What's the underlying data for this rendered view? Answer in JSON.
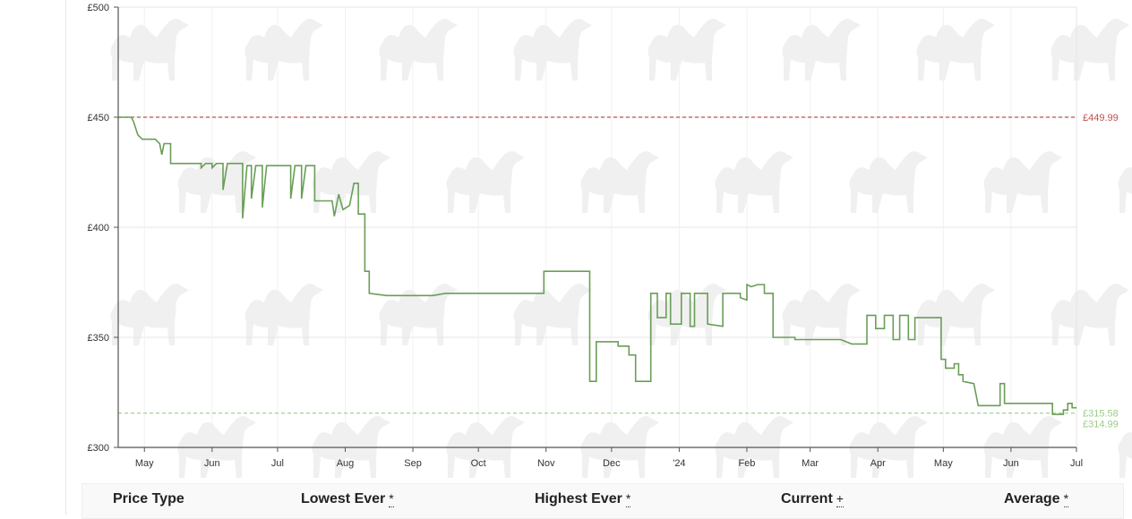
{
  "colors": {
    "price_line": "#6a9e58",
    "highest_ref": "#c0504d",
    "lowest_ref": "#9ccc89",
    "grid": "#e6e6e6",
    "axis": "#555555",
    "watermark": "#f0f0f0"
  },
  "watermark_icon": "camel-icon",
  "chart_data": {
    "type": "line",
    "title": "",
    "xlabel": "",
    "ylabel": "",
    "ylim": [
      300,
      500
    ],
    "xlim": [
      "2023-04-19",
      "2024-07-01"
    ],
    "y_ticks": [
      {
        "value": 300,
        "label": "£300"
      },
      {
        "value": 350,
        "label": "£350"
      },
      {
        "value": 400,
        "label": "£400"
      },
      {
        "value": 450,
        "label": "£450"
      },
      {
        "value": 500,
        "label": "£500"
      }
    ],
    "x_ticks": [
      {
        "date": "2023-05-01",
        "label": "May"
      },
      {
        "date": "2023-06-01",
        "label": "Jun"
      },
      {
        "date": "2023-07-01",
        "label": "Jul"
      },
      {
        "date": "2023-08-01",
        "label": "Aug"
      },
      {
        "date": "2023-09-01",
        "label": "Sep"
      },
      {
        "date": "2023-10-01",
        "label": "Oct"
      },
      {
        "date": "2023-11-01",
        "label": "Nov"
      },
      {
        "date": "2023-12-01",
        "label": "Dec"
      },
      {
        "date": "2024-01-01",
        "label": "'24"
      },
      {
        "date": "2024-02-01",
        "label": "Feb"
      },
      {
        "date": "2024-03-01",
        "label": "Mar"
      },
      {
        "date": "2024-04-01",
        "label": "Apr"
      },
      {
        "date": "2024-05-01",
        "label": "May"
      },
      {
        "date": "2024-06-01",
        "label": "Jun"
      },
      {
        "date": "2024-07-01",
        "label": "Jul"
      }
    ],
    "reference_lines": [
      {
        "value": 449.99,
        "label": "£449.99",
        "kind": "highest"
      },
      {
        "value": 315.58,
        "label": "£315.58",
        "kind": "average"
      },
      {
        "value": 314.99,
        "label": "£314.99",
        "kind": "lowest"
      }
    ],
    "series": [
      {
        "points": [
          [
            "2023-04-19",
            450
          ],
          [
            "2023-04-25",
            450
          ],
          [
            "2023-04-26",
            448
          ],
          [
            "2023-04-27",
            445
          ],
          [
            "2023-04-28",
            442
          ],
          [
            "2023-04-30",
            440
          ],
          [
            "2023-05-06",
            440
          ],
          [
            "2023-05-08",
            438
          ],
          [
            "2023-05-09",
            433
          ],
          [
            "2023-05-10",
            438
          ],
          [
            "2023-05-13",
            438
          ],
          [
            "2023-05-13",
            429
          ],
          [
            "2023-05-27",
            429
          ],
          [
            "2023-05-27",
            427
          ],
          [
            "2023-05-29",
            429
          ],
          [
            "2023-06-01",
            429
          ],
          [
            "2023-06-01",
            427
          ],
          [
            "2023-06-03",
            429
          ],
          [
            "2023-06-06",
            429
          ],
          [
            "2023-06-06",
            417
          ],
          [
            "2023-06-08",
            429
          ],
          [
            "2023-06-15",
            429
          ],
          [
            "2023-06-15",
            404
          ],
          [
            "2023-06-17",
            428
          ],
          [
            "2023-06-19",
            428
          ],
          [
            "2023-06-19",
            413
          ],
          [
            "2023-06-21",
            428
          ],
          [
            "2023-06-24",
            428
          ],
          [
            "2023-06-24",
            409
          ],
          [
            "2023-06-26",
            428
          ],
          [
            "2023-07-07",
            428
          ],
          [
            "2023-07-07",
            413
          ],
          [
            "2023-07-09",
            428
          ],
          [
            "2023-07-12",
            428
          ],
          [
            "2023-07-12",
            413
          ],
          [
            "2023-07-14",
            428
          ],
          [
            "2023-07-18",
            428
          ],
          [
            "2023-07-18",
            412
          ],
          [
            "2023-07-26",
            412
          ],
          [
            "2023-07-27",
            405
          ],
          [
            "2023-07-29",
            415
          ],
          [
            "2023-07-31",
            408
          ],
          [
            "2023-08-03",
            410
          ],
          [
            "2023-08-05",
            420
          ],
          [
            "2023-08-07",
            420
          ],
          [
            "2023-08-07",
            406
          ],
          [
            "2023-08-10",
            406
          ],
          [
            "2023-08-10",
            380
          ],
          [
            "2023-08-12",
            380
          ],
          [
            "2023-08-12",
            370
          ],
          [
            "2023-08-20",
            369
          ],
          [
            "2023-09-10",
            369
          ],
          [
            "2023-09-16",
            370
          ],
          [
            "2023-10-31",
            370
          ],
          [
            "2023-10-31",
            380
          ],
          [
            "2023-11-21",
            380
          ],
          [
            "2023-11-21",
            330
          ],
          [
            "2023-11-24",
            330
          ],
          [
            "2023-11-24",
            348
          ],
          [
            "2023-12-04",
            348
          ],
          [
            "2023-12-04",
            346
          ],
          [
            "2023-12-09",
            346
          ],
          [
            "2023-12-09",
            342
          ],
          [
            "2023-12-12",
            342
          ],
          [
            "2023-12-12",
            330
          ],
          [
            "2023-12-19",
            330
          ],
          [
            "2023-12-19",
            370
          ],
          [
            "2023-12-22",
            370
          ],
          [
            "2023-12-22",
            359
          ],
          [
            "2023-12-26",
            359
          ],
          [
            "2023-12-26",
            370
          ],
          [
            "2023-12-28",
            370
          ],
          [
            "2023-12-28",
            356
          ],
          [
            "2024-01-02",
            356
          ],
          [
            "2024-01-02",
            370
          ],
          [
            "2024-01-06",
            370
          ],
          [
            "2024-01-06",
            355
          ],
          [
            "2024-01-08",
            355
          ],
          [
            "2024-01-08",
            370
          ],
          [
            "2024-01-14",
            370
          ],
          [
            "2024-01-14",
            356
          ],
          [
            "2024-01-21",
            355
          ],
          [
            "2024-01-21",
            370
          ],
          [
            "2024-01-29",
            370
          ],
          [
            "2024-01-29",
            368
          ],
          [
            "2024-02-01",
            367
          ],
          [
            "2024-02-01",
            374
          ],
          [
            "2024-02-03",
            373
          ],
          [
            "2024-02-06",
            374
          ],
          [
            "2024-02-09",
            374
          ],
          [
            "2024-02-09",
            370
          ],
          [
            "2024-02-13",
            370
          ],
          [
            "2024-02-13",
            350
          ],
          [
            "2024-02-23",
            350
          ],
          [
            "2024-02-23",
            349
          ],
          [
            "2024-03-15",
            349
          ],
          [
            "2024-03-20",
            347
          ],
          [
            "2024-03-27",
            347
          ],
          [
            "2024-03-27",
            360
          ],
          [
            "2024-03-31",
            360
          ],
          [
            "2024-03-31",
            354
          ],
          [
            "2024-04-04",
            354
          ],
          [
            "2024-04-04",
            360
          ],
          [
            "2024-04-08",
            360
          ],
          [
            "2024-04-08",
            349
          ],
          [
            "2024-04-11",
            349
          ],
          [
            "2024-04-11",
            360
          ],
          [
            "2024-04-15",
            360
          ],
          [
            "2024-04-15",
            349
          ],
          [
            "2024-04-18",
            349
          ],
          [
            "2024-04-18",
            359
          ],
          [
            "2024-04-30",
            359
          ],
          [
            "2024-04-30",
            340
          ],
          [
            "2024-05-02",
            340
          ],
          [
            "2024-05-02",
            336
          ],
          [
            "2024-05-06",
            336
          ],
          [
            "2024-05-06",
            338
          ],
          [
            "2024-05-08",
            338
          ],
          [
            "2024-05-08",
            333
          ],
          [
            "2024-05-10",
            333
          ],
          [
            "2024-05-10",
            330
          ],
          [
            "2024-05-15",
            329
          ],
          [
            "2024-05-17",
            319
          ],
          [
            "2024-05-27",
            319
          ],
          [
            "2024-05-27",
            329
          ],
          [
            "2024-05-29",
            329
          ],
          [
            "2024-05-29",
            320
          ],
          [
            "2024-06-20",
            320
          ],
          [
            "2024-06-20",
            315
          ],
          [
            "2024-06-25",
            315
          ],
          [
            "2024-06-25",
            317
          ],
          [
            "2024-06-27",
            317
          ],
          [
            "2024-06-27",
            320
          ],
          [
            "2024-06-29",
            320
          ],
          [
            "2024-06-29",
            318
          ],
          [
            "2024-07-01",
            318
          ]
        ]
      }
    ]
  },
  "price_table": {
    "headers": [
      {
        "label": "Price Type",
        "mark": ""
      },
      {
        "label": "Lowest Ever",
        "mark": "*"
      },
      {
        "label": "Highest Ever",
        "mark": "*"
      },
      {
        "label": "Current",
        "mark": "+"
      },
      {
        "label": "Average",
        "mark": "*"
      }
    ]
  }
}
